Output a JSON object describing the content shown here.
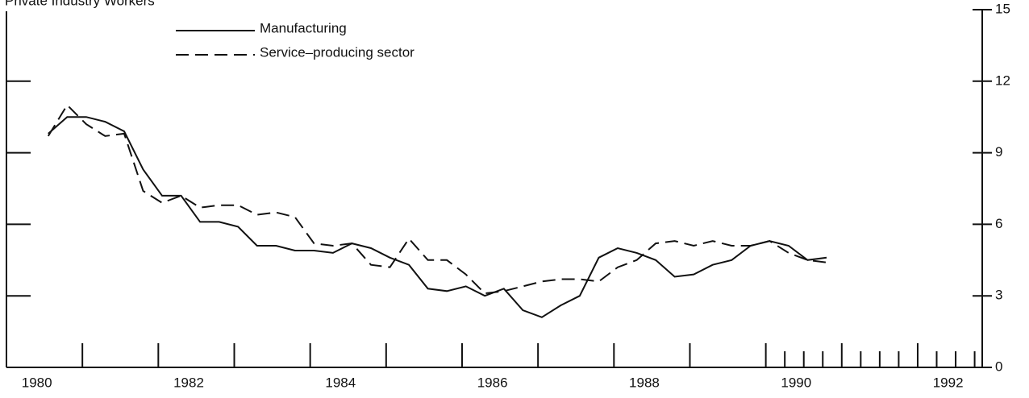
{
  "chart_data": {
    "type": "line",
    "title": "Private Industry Workers",
    "x": [
      1980.15,
      1980.4,
      1980.65,
      1980.9,
      1981.15,
      1981.4,
      1981.65,
      1981.9,
      1982.15,
      1982.4,
      1982.65,
      1982.9,
      1983.15,
      1983.4,
      1983.65,
      1983.9,
      1984.15,
      1984.4,
      1984.65,
      1984.9,
      1985.15,
      1985.4,
      1985.65,
      1985.9,
      1986.15,
      1986.4,
      1986.65,
      1986.9,
      1987.15,
      1987.4,
      1987.65,
      1987.9,
      1988.15,
      1988.4,
      1988.65,
      1988.9,
      1989.15,
      1989.4,
      1989.65,
      1989.9,
      1990.15,
      1990.4
    ],
    "series": [
      {
        "name": "Manufacturing",
        "color": "#111111",
        "dash": "solid",
        "values": [
          9.8,
          10.5,
          10.5,
          10.3,
          9.9,
          8.3,
          7.2,
          7.2,
          6.1,
          6.1,
          5.9,
          5.1,
          5.1,
          4.9,
          4.9,
          4.8,
          5.2,
          5.0,
          4.6,
          4.3,
          3.3,
          3.2,
          3.4,
          3.0,
          3.3,
          2.4,
          2.1,
          2.6,
          3.0,
          4.6,
          5.0,
          4.8,
          4.5,
          3.8,
          3.9,
          4.3,
          4.5,
          5.1,
          5.3,
          5.1,
          4.5,
          4.6
        ]
      },
      {
        "name": "Service–producing sector",
        "color": "#111111",
        "dash": "dashed",
        "values": [
          9.7,
          11.0,
          10.2,
          9.7,
          9.8,
          7.4,
          6.9,
          7.2,
          6.7,
          6.8,
          6.8,
          6.4,
          6.5,
          6.3,
          5.2,
          5.1,
          5.2,
          4.3,
          4.2,
          5.4,
          4.5,
          4.5,
          3.9,
          3.1,
          3.2,
          3.4,
          3.6,
          3.7,
          3.7,
          3.6,
          4.2,
          4.5,
          5.2,
          5.3,
          5.1,
          5.3,
          5.1,
          5.1,
          5.3,
          4.8,
          4.5,
          4.4
        ]
      }
    ],
    "xlim": [
      1979.6,
      1992.45
    ],
    "xticks": [
      1980,
      1982,
      1984,
      1986,
      1988,
      1990,
      1992
    ],
    "xticks_major": [
      1980.6,
      1981.6,
      1982.6,
      1983.6,
      1984.6,
      1985.6,
      1986.6,
      1987.6,
      1988.6,
      1989.6,
      1990.6,
      1991.6
    ],
    "xticks_minor": [
      1989.85,
      1990.1,
      1990.35,
      1990.85,
      1991.1,
      1991.35,
      1991.85,
      1992.1,
      1992.35
    ],
    "ylim": [
      0,
      15
    ],
    "yticks": [
      0,
      3,
      6,
      9,
      12,
      15
    ],
    "y_axis_side": "right",
    "legend": "upper left"
  }
}
